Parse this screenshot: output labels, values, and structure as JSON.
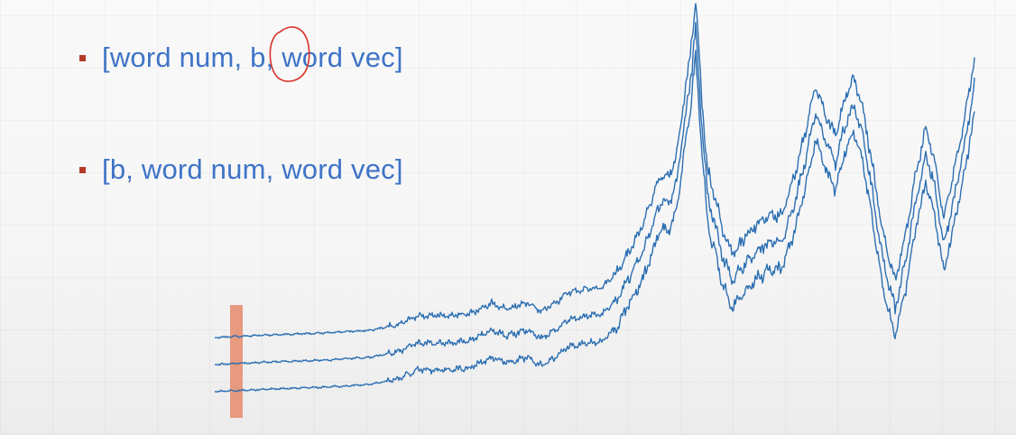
{
  "slide": {
    "bullets": [
      {
        "text": "[word num, b, word vec]"
      },
      {
        "text": "[b, word num, word vec]"
      }
    ]
  },
  "colors": {
    "text": "#3f74c6",
    "bullet": "#b63a2a",
    "line": "#2c6fb2",
    "highlight_bar": "#e79a80",
    "circle_annotation": "#d9322b"
  },
  "figure": {
    "series_count": 3,
    "series_offset": 30
  }
}
